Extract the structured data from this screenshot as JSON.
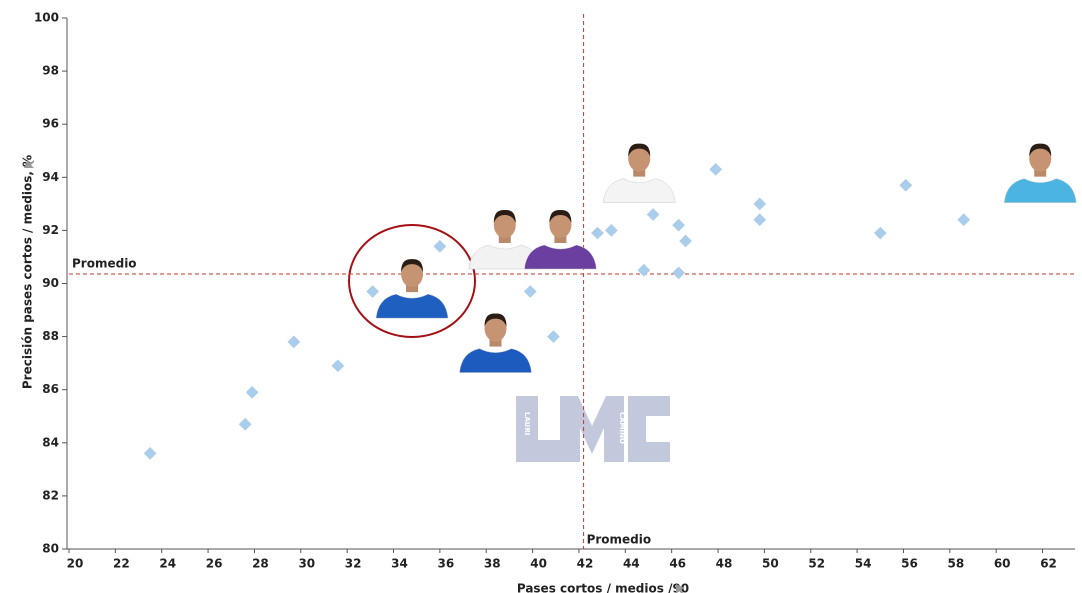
{
  "chart_data": {
    "type": "scatter",
    "x_label": "Pases cortos / medios /90",
    "y_label": "Precisión pases cortos / medios, %",
    "xlim": [
      20,
      63.4
    ],
    "ylim": [
      80,
      100
    ],
    "xticks": [
      20,
      22,
      24,
      26,
      28,
      30,
      32,
      34,
      36,
      38,
      40,
      42,
      44,
      46,
      48,
      50,
      52,
      54,
      56,
      58,
      60,
      62
    ],
    "yticks": [
      80,
      82,
      84,
      86,
      88,
      90,
      92,
      94,
      96,
      98,
      100
    ],
    "color": "#a9cdea",
    "x": [
      23.5,
      27.6,
      27.9,
      29.7,
      31.6,
      33.1,
      36.0,
      39.9,
      40.9,
      42.8,
      43.4,
      44.8,
      45.2,
      46.3,
      46.6,
      46.3,
      47.9,
      49.8,
      49.8,
      55.0,
      56.1,
      58.6
    ],
    "values": [
      83.6,
      84.7,
      85.9,
      87.8,
      86.9,
      89.7,
      91.4,
      89.7,
      88.0,
      91.9,
      92.0,
      90.5,
      92.6,
      92.2,
      91.6,
      90.4,
      94.3,
      93.0,
      92.4,
      91.9,
      93.7,
      92.4
    ],
    "players": [
      {
        "x": 34.8,
        "y": 89.75,
        "color": "#1f5fbf"
      },
      {
        "x": 38.8,
        "y": 91.6,
        "color": "#f2f2f2"
      },
      {
        "x": 41.2,
        "y": 91.6,
        "color": "#6b3fa0"
      },
      {
        "x": 38.4,
        "y": 87.7,
        "color": "#1d5bbf"
      },
      {
        "x": 44.6,
        "y": 94.1,
        "color": "#f4f4f4"
      },
      {
        "x": 61.9,
        "y": 94.1,
        "color": "#4bb4e0"
      }
    ],
    "avg_x": 42.2,
    "avg_y": 90.36,
    "avg_x_label": "Promedio",
    "avg_y_label": "Promedio",
    "avg_color": "#c0392b",
    "watermark": {
      "left": "LAURI",
      "right": "CAMINO"
    }
  }
}
